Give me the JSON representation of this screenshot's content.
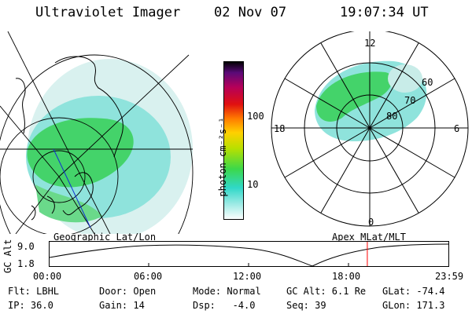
{
  "header": {
    "instrument": "Ultraviolet Imager",
    "date": "02 Nov 07",
    "time": "19:07:34 UT"
  },
  "colorbar": {
    "label": "photon cm⁻²s⁻¹",
    "ticks": [
      "100",
      "10"
    ]
  },
  "polar_plot": {
    "mlt_labels": {
      "top": "12",
      "left": "18",
      "right": "6",
      "bottom": "0"
    },
    "lat_labels": [
      "60",
      "70",
      "80"
    ]
  },
  "panel_labels": {
    "left": "Geographic Lat/Lon",
    "right": "Apex MLat/MLT"
  },
  "timeline": {
    "axis_label": "GC Alt",
    "y_ticks": [
      "9.0",
      "1.8"
    ],
    "x_ticks": [
      "00:00",
      "06:00",
      "12:00",
      "18:00",
      "23:59"
    ],
    "current_time_fraction": 0.7967
  },
  "status": {
    "row1": {
      "filter": "Flt: LBHL",
      "door": "Door: Open",
      "mode": "Mode: Normal",
      "gc_alt": "GC Alt: 6.1 Re",
      "glat": "GLat: -74.4"
    },
    "row2": {
      "ip": "IP: 36.0",
      "gain": "Gain: 14",
      "dsp": "Dsp:   -4.0",
      "seq": "Seq: 39",
      "glon": "GLon: 171.3"
    }
  },
  "colors": {
    "foreground": "#000000",
    "marker": "#ff0000",
    "background": "#ffffff"
  }
}
